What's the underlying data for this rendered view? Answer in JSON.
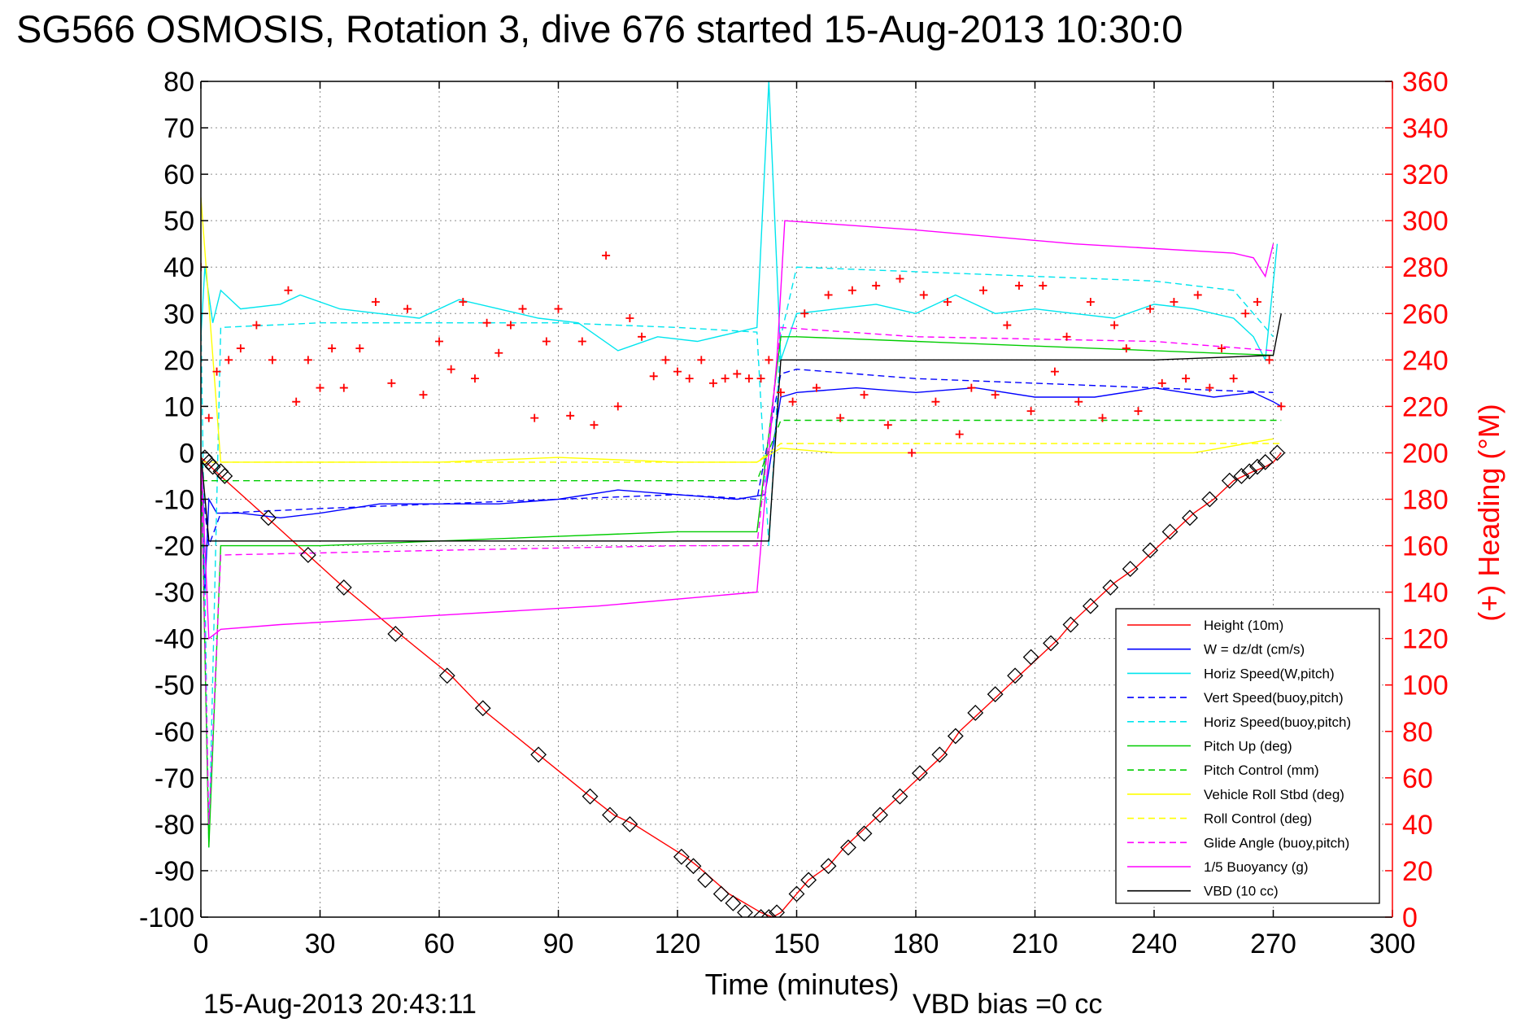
{
  "chart_data": {
    "type": "line",
    "title": "SG566 OSMOSIS, Rotation 3, dive 676 started 15-Aug-2013 10:30:0",
    "xlabel": "Time (minutes)",
    "ylabel": "",
    "y2label": "(+) Heading (°M)",
    "xlim": [
      0,
      300
    ],
    "ylim": [
      -100,
      80
    ],
    "y2lim": [
      0,
      360
    ],
    "grid": true,
    "legend_position": "bottom-right",
    "footer_timestamp": "15-Aug-2013 20:43:11",
    "vbd_bias": "VBD bias =0 cc",
    "colors": {
      "axis_left": "#000000",
      "axis_right": "#ff0000",
      "grid": "#8c8c8c"
    },
    "xticks": [
      "0",
      "30",
      "60",
      "90",
      "120",
      "150",
      "180",
      "210",
      "240",
      "270",
      "300"
    ],
    "yticks_left": [
      "80",
      "70",
      "60",
      "50",
      "40",
      "30",
      "20",
      "10",
      "0",
      "-10",
      "-20",
      "-30",
      "-40",
      "-50",
      "-60",
      "-70",
      "-80",
      "-90",
      "-100"
    ],
    "yticks_right": [
      "360",
      "340",
      "320",
      "300",
      "280",
      "260",
      "240",
      "220",
      "200",
      "180",
      "160",
      "140",
      "120",
      "100",
      "80",
      "60",
      "40",
      "20",
      "0"
    ],
    "series": [
      {
        "name": "Height (10m)",
        "color": "#ff0000",
        "style": "solid",
        "x": [
          0,
          5,
          18,
          27,
          36,
          50,
          63,
          72,
          85,
          98,
          104,
          109,
          122,
          125,
          129,
          133,
          137,
          141,
          144,
          146,
          149,
          153,
          158,
          162,
          167,
          172,
          177,
          182,
          187,
          191,
          196,
          201,
          206,
          211,
          216,
          220,
          225,
          230,
          235,
          240,
          245,
          250,
          255,
          260,
          265,
          268,
          270,
          272
        ],
        "y": [
          -1,
          -5,
          -15,
          -22,
          -29,
          -39,
          -48,
          -56,
          -65,
          -74,
          -78,
          -80,
          -87,
          -89,
          -92,
          -95,
          -97,
          -99,
          -100,
          -99,
          -96,
          -92,
          -89,
          -85,
          -81,
          -77,
          -73,
          -69,
          -65,
          -60,
          -56,
          -52,
          -48,
          -44,
          -40,
          -36,
          -32,
          -28,
          -25,
          -21,
          -17,
          -13,
          -10,
          -6,
          -4,
          -3,
          -2,
          0
        ]
      },
      {
        "name": "W = dz/dt (cm/s)",
        "color": "#0000ff",
        "style": "solid",
        "x": [
          0,
          1,
          2,
          4,
          10,
          20,
          30,
          45,
          60,
          75,
          90,
          105,
          120,
          135,
          142,
          146,
          150,
          165,
          180,
          195,
          210,
          225,
          240,
          255,
          265,
          270,
          272
        ],
        "y": [
          -5,
          -30,
          -10,
          -13,
          -13,
          -14,
          -13,
          -11,
          -11,
          -11,
          -10,
          -8,
          -9,
          -10,
          -9,
          12,
          13,
          14,
          13,
          14,
          12,
          12,
          14,
          12,
          13,
          11,
          10
        ]
      },
      {
        "name": "Horiz Speed(W,pitch)",
        "color": "#00e5ee",
        "style": "solid",
        "x": [
          0,
          1,
          3,
          5,
          10,
          20,
          25,
          35,
          45,
          55,
          65,
          75,
          85,
          95,
          105,
          115,
          125,
          135,
          140,
          143,
          146,
          150,
          160,
          170,
          180,
          190,
          200,
          210,
          220,
          230,
          240,
          250,
          260,
          265,
          268,
          271
        ],
        "y": [
          25,
          40,
          28,
          35,
          31,
          32,
          34,
          31,
          30,
          29,
          33,
          31,
          29,
          28,
          22,
          25,
          24,
          26,
          27,
          80,
          20,
          30,
          31,
          32,
          30,
          34,
          30,
          31,
          30,
          29,
          32,
          31,
          29,
          25,
          20,
          45
        ]
      },
      {
        "name": "Vert Speed(buoy,pitch)",
        "color": "#0000ff",
        "style": "dashed",
        "x": [
          0,
          2,
          5,
          30,
          60,
          90,
          120,
          140,
          146,
          150,
          180,
          210,
          240,
          270
        ],
        "y": [
          -5,
          -20,
          -13,
          -12,
          -11,
          -10,
          -9,
          -10,
          17,
          18,
          16,
          15,
          14,
          13
        ]
      },
      {
        "name": "Horiz Speed(buoy,pitch)",
        "color": "#00e5ee",
        "style": "dashed",
        "x": [
          0,
          2,
          5,
          30,
          60,
          90,
          120,
          140,
          143,
          146,
          150,
          180,
          210,
          240,
          260,
          270
        ],
        "y": [
          30,
          -85,
          27,
          28,
          28,
          28,
          27,
          26,
          -20,
          25,
          40,
          39,
          38,
          37,
          35,
          25
        ]
      },
      {
        "name": "Pitch Up (deg)",
        "color": "#00cc00",
        "style": "solid",
        "x": [
          0,
          2,
          5,
          30,
          60,
          90,
          120,
          140,
          146,
          150,
          180,
          210,
          240,
          270
        ],
        "y": [
          0,
          -85,
          -20,
          -20,
          -19,
          -18,
          -17,
          -17,
          25,
          25,
          24,
          23,
          22,
          21
        ]
      },
      {
        "name": "Pitch Control (mm)",
        "color": "#00cc00",
        "style": "dashed",
        "x": [
          0,
          5,
          140,
          146,
          272
        ],
        "y": [
          -6,
          -6,
          -6,
          7,
          7
        ]
      },
      {
        "name": "Vehicle Roll Stbd (deg)",
        "color": "#ffff00",
        "style": "solid",
        "x": [
          0,
          5,
          30,
          60,
          90,
          120,
          140,
          146,
          160,
          190,
          220,
          250,
          270
        ],
        "y": [
          55,
          -2,
          -2,
          -2,
          -1,
          -2,
          -2,
          1,
          0,
          0,
          0,
          0,
          3
        ]
      },
      {
        "name": "Roll Control (deg)",
        "color": "#ffff00",
        "style": "dashed",
        "x": [
          0,
          140,
          146,
          272
        ],
        "y": [
          -2,
          -2,
          2,
          2
        ]
      },
      {
        "name": "Glide Angle (buoy,pitch)",
        "color": "#ff00ff",
        "style": "dashed",
        "x": [
          0,
          2,
          5,
          60,
          120,
          140,
          146,
          180,
          240,
          270
        ],
        "y": [
          0,
          -80,
          -22,
          -21,
          -20,
          -20,
          27,
          25,
          24,
          22
        ]
      },
      {
        "name": "1/5 Buoyancy (g)",
        "color": "#ff00ff",
        "style": "solid",
        "x": [
          0,
          2,
          5,
          20,
          60,
          100,
          140,
          145,
          147,
          180,
          220,
          260,
          265,
          268,
          270
        ],
        "y": [
          0,
          -40,
          -38,
          -37,
          -35,
          -33,
          -30,
          20,
          50,
          48,
          45,
          43,
          42,
          38,
          45
        ]
      },
      {
        "name": "VBD (10 cc)",
        "color": "#000000",
        "style": "solid",
        "x": [
          0,
          2,
          10,
          60,
          120,
          140,
          143,
          146,
          180,
          240,
          270,
          272
        ],
        "y": [
          0,
          -19,
          -19,
          -19,
          -19,
          -19,
          -19,
          20,
          20,
          20,
          21,
          30
        ]
      }
    ],
    "depth_markers": {
      "x": [
        1,
        2,
        3,
        5,
        6,
        17,
        27,
        36,
        49,
        62,
        71,
        85,
        98,
        103,
        108,
        121,
        124,
        127,
        131,
        134,
        137,
        141,
        143,
        145,
        150,
        153,
        158,
        163,
        167,
        171,
        176,
        181,
        186,
        190,
        195,
        200,
        205,
        209,
        214,
        219,
        224,
        229,
        234,
        239,
        244,
        249,
        254,
        259,
        262,
        264,
        266,
        268,
        271
      ],
      "y": [
        -1,
        -2,
        -3,
        -4,
        -5,
        -14,
        -22,
        -29,
        -39,
        -48,
        -55,
        -65,
        -74,
        -78,
        -80,
        -87,
        -89,
        -92,
        -95,
        -97,
        -99,
        -100,
        -100,
        -99,
        -95,
        -92,
        -89,
        -85,
        -82,
        -78,
        -74,
        -69,
        -65,
        -61,
        -56,
        -52,
        -48,
        -44,
        -41,
        -37,
        -33,
        -29,
        -25,
        -21,
        -17,
        -14,
        -10,
        -6,
        -5,
        -4,
        -3,
        -2,
        0
      ]
    },
    "heading": {
      "color": "#ff0000",
      "marker": "+",
      "x": [
        0,
        2,
        4,
        7,
        10,
        14,
        18,
        22,
        24,
        27,
        30,
        33,
        36,
        40,
        44,
        48,
        52,
        56,
        60,
        63,
        66,
        69,
        72,
        75,
        78,
        81,
        84,
        87,
        90,
        93,
        96,
        99,
        102,
        105,
        108,
        111,
        114,
        117,
        120,
        123,
        126,
        129,
        132,
        135,
        138,
        141,
        143,
        146,
        149,
        152,
        155,
        158,
        161,
        164,
        167,
        170,
        173,
        176,
        179,
        182,
        185,
        188,
        191,
        194,
        197,
        200,
        203,
        206,
        209,
        212,
        215,
        218,
        221,
        224,
        227,
        230,
        233,
        236,
        239,
        242,
        245,
        248,
        251,
        254,
        257,
        260,
        263,
        266,
        269,
        272
      ],
      "y": [
        280,
        215,
        235,
        240,
        245,
        255,
        240,
        270,
        222,
        240,
        228,
        245,
        228,
        245,
        265,
        230,
        262,
        225,
        248,
        236,
        265,
        232,
        256,
        243,
        255,
        262,
        215,
        248,
        262,
        216,
        248,
        212,
        285,
        220,
        258,
        250,
        233,
        240,
        235,
        232,
        240,
        230,
        232,
        234,
        232,
        232,
        240,
        226,
        222,
        260,
        228,
        268,
        215,
        270,
        225,
        272,
        212,
        275,
        200,
        268,
        222,
        265,
        208,
        228,
        270,
        225,
        255,
        272,
        218,
        272,
        235,
        250,
        222,
        265,
        215,
        255,
        245,
        218,
        262,
        230,
        265,
        232,
        268,
        228,
        245,
        232,
        260,
        265,
        240,
        220
      ]
    }
  },
  "legend": {
    "items": [
      {
        "label": "Height (10m)",
        "color": "#ff0000",
        "style": "solid"
      },
      {
        "label": "W = dz/dt (cm/s)",
        "color": "#0000ff",
        "style": "solid"
      },
      {
        "label": "Horiz Speed(W,pitch)",
        "color": "#00e5ee",
        "style": "solid"
      },
      {
        "label": "Vert Speed(buoy,pitch)",
        "color": "#0000ff",
        "style": "dashed"
      },
      {
        "label": "Horiz Speed(buoy,pitch)",
        "color": "#00e5ee",
        "style": "dashed"
      },
      {
        "label": "Pitch Up (deg)",
        "color": "#00cc00",
        "style": "solid"
      },
      {
        "label": "Pitch Control (mm)",
        "color": "#00cc00",
        "style": "dashed"
      },
      {
        "label": "Vehicle Roll Stbd (deg)",
        "color": "#ffff00",
        "style": "solid"
      },
      {
        "label": "Roll Control (deg)",
        "color": "#ffff00",
        "style": "dashed"
      },
      {
        "label": "Glide Angle (buoy,pitch)",
        "color": "#ff00ff",
        "style": "dashed"
      },
      {
        "label": "1/5 Buoyancy (g)",
        "color": "#ff00ff",
        "style": "solid"
      },
      {
        "label": "VBD (10 cc)",
        "color": "#000000",
        "style": "solid"
      }
    ]
  }
}
